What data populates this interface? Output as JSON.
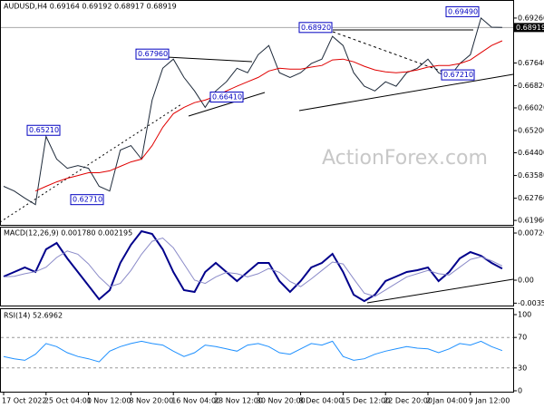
{
  "chart_data": [
    {
      "type": "line",
      "header": "AUDUSD,H4 0.69164 0.69192 0.68917 0.68919",
      "watermark": "ActionForex.com",
      "ylim": [
        0.618,
        0.6965
      ],
      "yticks": [
        {
          "value": 0.6926,
          "label": "0.69260"
        },
        {
          "value": 0.6764,
          "label": "0.67640"
        },
        {
          "value": 0.6682,
          "label": "0.66820"
        },
        {
          "value": 0.6602,
          "label": "0.66020"
        },
        {
          "value": 0.652,
          "label": "0.65200"
        },
        {
          "value": 0.644,
          "label": "0.64400"
        },
        {
          "value": 0.6358,
          "label": "0.63580"
        },
        {
          "value": 0.6276,
          "label": "0.62760"
        },
        {
          "value": 0.6196,
          "label": "0.61960"
        }
      ],
      "last_price": 0.68919,
      "annotations": [
        {
          "value": 0.6949,
          "label": "0.69490"
        },
        {
          "value": 0.6892,
          "label": "0.68920"
        },
        {
          "value": 0.6796,
          "label": "0.67960"
        },
        {
          "value": 0.6641,
          "label": "0.66410"
        },
        {
          "value": 0.6521,
          "label": "0.65210"
        },
        {
          "value": 0.6271,
          "label": "0.62710"
        },
        {
          "value": 0.6721,
          "label": "0.67210"
        }
      ],
      "series": [
        {
          "name": "AUDUSD",
          "color": "#1e2a3a",
          "values": [
            0.6319,
            0.6302,
            0.6276,
            0.6253,
            0.6499,
            0.6417,
            0.6384,
            0.6394,
            0.6384,
            0.6319,
            0.6302,
            0.645,
            0.6466,
            0.6417,
            0.663,
            0.6745,
            0.6778,
            0.6712,
            0.6663,
            0.6604,
            0.6663,
            0.6696,
            0.6745,
            0.6729,
            0.6794,
            0.6827,
            0.6729,
            0.6712,
            0.6729,
            0.6762,
            0.6778,
            0.686,
            0.6827,
            0.6729,
            0.668,
            0.6663,
            0.6696,
            0.668,
            0.6729,
            0.6745,
            0.6778,
            0.6729,
            0.6712,
            0.6762,
            0.6794,
            0.6926,
            0.6893,
            0.6892
          ]
        },
        {
          "name": "MA",
          "color": "#e00000",
          "values": [
            null,
            null,
            null,
            0.6302,
            0.6319,
            0.6335,
            0.6348,
            0.6358,
            0.6368,
            0.6368,
            0.6375,
            0.6391,
            0.6407,
            0.6417,
            0.6466,
            0.6532,
            0.6581,
            0.6604,
            0.6621,
            0.663,
            0.6644,
            0.6663,
            0.668,
            0.6696,
            0.6712,
            0.6735,
            0.6745,
            0.6742,
            0.6742,
            0.6749,
            0.6755,
            0.6775,
            0.6778,
            0.6768,
            0.6752,
            0.6739,
            0.6732,
            0.6729,
            0.6732,
            0.6739,
            0.6749,
            0.6755,
            0.6755,
            0.6762,
            0.6775,
            0.6801,
            0.6827,
            0.6844
          ]
        }
      ]
    },
    {
      "type": "line",
      "header": "MACD(12,26,9) 0.001780 0.002195",
      "ylim": [
        -0.00391,
        0.00811
      ],
      "yticks": [
        0.007269,
        {
          "value": 0,
          "label": "0.00"
        },
        -0.003542
      ],
      "series": [
        {
          "name": "MACD",
          "color": "#00008b",
          "values": [
            0.00056,
            0.00126,
            0.00196,
            0.00126,
            0.00475,
            0.00573,
            0.00336,
            0.00126,
            -0.00084,
            -0.00294,
            -0.00154,
            0.00266,
            0.00545,
            0.00755,
            0.00713,
            0.00475,
            0.00126,
            -0.00154,
            -0.00182,
            0.00126,
            0.00266,
            0.00126,
            -0.00014,
            0.00126,
            0.00266,
            0.00266,
            -0.00014,
            -0.00182,
            -0.00014,
            0.00196,
            0.00266,
            0.00405,
            0.00126,
            -0.00224,
            -0.00322,
            -0.00224,
            -0.00014,
            0.00056,
            0.00126,
            0.00154,
            0.00196,
            -0.00014,
            0.00126,
            0.00336,
            0.00433,
            0.00377,
            0.00266,
            0.00178
          ]
        },
        {
          "name": "Signal",
          "color": "#8a8ac8",
          "values": [
            0.0005,
            0.0006,
            0.001,
            0.0013,
            0.002,
            0.0035,
            0.0045,
            0.004,
            0.0025,
            0.0005,
            -0.001,
            -0.0005,
            0.0015,
            0.004,
            0.006,
            0.0065,
            0.005,
            0.0025,
            0,
            -0.0005,
            0.0005,
            0.0012,
            0.001,
            0.0005,
            0.001,
            0.0018,
            0.0012,
            -0.0002,
            -0.001,
            0.0002,
            0.0015,
            0.0028,
            0.0025,
            0.0002,
            -0.002,
            -0.0025,
            -0.0015,
            -0.0005,
            0.0005,
            0.001,
            0.0015,
            0.001,
            0.0008,
            0.002,
            0.0032,
            0.0036,
            0.003,
            0.002195
          ]
        }
      ]
    },
    {
      "type": "line",
      "header": "RSI(14) 52.6962",
      "ylim": [
        0,
        100
      ],
      "yticks": [
        100,
        70,
        30,
        0
      ],
      "levels": [
        70,
        30
      ],
      "categories": [
        "17 Oct 2022",
        null,
        null,
        null,
        "25 Oct 04:00",
        null,
        null,
        null,
        "1 Nov 12:00",
        null,
        null,
        null,
        "8 Nov 20:00",
        null,
        null,
        null,
        "16 Nov 04:00",
        null,
        null,
        null,
        "23 Nov 12:00",
        null,
        null,
        null,
        "30 Nov 20:00",
        null,
        null,
        null,
        "8 Dec 04:00",
        null,
        null,
        null,
        "15 Dec 12:00",
        null,
        null,
        null,
        "22 Dec 20:00",
        null,
        null,
        null,
        "2 Jan 04:00",
        null,
        null,
        null,
        "9 Jan 12:00",
        null,
        null,
        null
      ],
      "series": [
        {
          "name": "RSI",
          "color": "#1e90ff",
          "values": [
            45,
            42,
            40,
            48,
            62,
            58,
            50,
            45,
            42,
            38,
            52,
            58,
            62,
            65,
            62,
            60,
            52,
            45,
            50,
            60,
            58,
            55,
            52,
            60,
            62,
            58,
            50,
            48,
            55,
            62,
            60,
            65,
            45,
            40,
            42,
            48,
            52,
            55,
            58,
            56,
            55,
            50,
            55,
            62,
            60,
            65,
            58,
            52.6962
          ]
        }
      ]
    }
  ]
}
